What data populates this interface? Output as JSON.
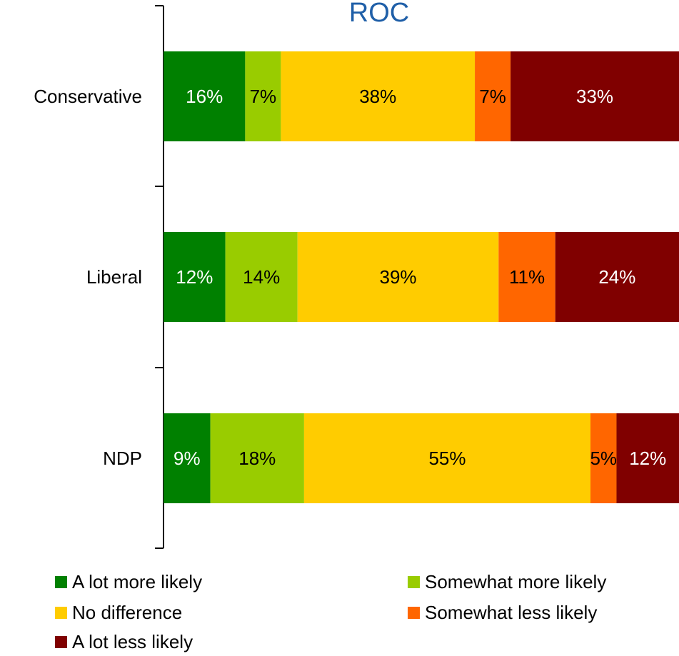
{
  "chart_data": {
    "type": "bar",
    "orientation": "horizontal",
    "stacked": true,
    "title": "ROC",
    "categories": [
      "Conservative",
      "Liberal",
      "NDP"
    ],
    "series": [
      {
        "name": "A lot more likely",
        "values": [
          16,
          12,
          9
        ],
        "labels": [
          "16%",
          "12%",
          "9%"
        ],
        "color": "#008000",
        "label_color": "#ffffff"
      },
      {
        "name": "Somewhat more likely",
        "values": [
          7,
          14,
          18
        ],
        "labels": [
          "7%",
          "14%",
          "18%"
        ],
        "color": "#99cc00",
        "label_color": "#000000"
      },
      {
        "name": "No difference",
        "values": [
          38,
          39,
          55
        ],
        "labels": [
          "38%",
          "39%",
          "55%"
        ],
        "color": "#ffcc00",
        "label_color": "#000000"
      },
      {
        "name": "Somewhat less likely",
        "values": [
          7,
          11,
          5
        ],
        "labels": [
          "7%",
          "11%",
          "5%"
        ],
        "color": "#ff6600",
        "label_color": "#000000"
      },
      {
        "name": "A lot less likely",
        "values": [
          33,
          24,
          12
        ],
        "labels": [
          "33%",
          "24%",
          "12%"
        ],
        "color": "#800000",
        "label_color": "#ffffff"
      }
    ],
    "xlim": [
      0,
      100
    ],
    "grid": false,
    "legend_position": "bottom"
  }
}
